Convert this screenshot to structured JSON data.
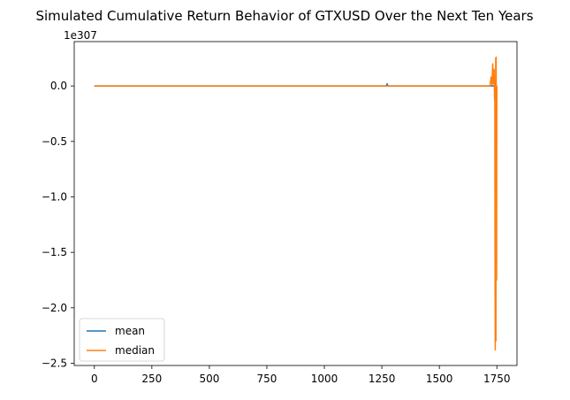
{
  "chart_data": {
    "type": "line",
    "title": "Simulated Cumulative Return Behavior of GTXUSD Over the Next Ten Years",
    "xlabel": "",
    "ylabel": "",
    "y_offset_label": "1e307",
    "xlim": [
      -87.5,
      1837.5
    ],
    "ylim": [
      -2.52,
      0.4
    ],
    "x_ticks": [
      0,
      250,
      500,
      750,
      1000,
      1250,
      1500,
      1750
    ],
    "x_tick_labels": [
      "0",
      "250",
      "500",
      "750",
      "1000",
      "1250",
      "1500",
      "1750"
    ],
    "y_ticks": [
      -2.5,
      -2.0,
      -1.5,
      -1.0,
      -0.5,
      0.0
    ],
    "y_tick_labels": [
      "−2.5",
      "−2.0",
      "−1.5",
      "−1.0",
      "−0.5",
      "0.0"
    ],
    "grid": false,
    "legend_position": "lower-left",
    "series": [
      {
        "name": "mean",
        "color": "#1f77b4",
        "x": [
          0,
          1270,
          1273,
          1276,
          1279,
          1720,
          1750
        ],
        "y": [
          0.0,
          0.0,
          0.02,
          0.0,
          0.0,
          0.0,
          0.0
        ]
      },
      {
        "name": "median",
        "color": "#ff7f0e",
        "x": [
          0,
          1720,
          1725,
          1729,
          1732,
          1735,
          1738,
          1740,
          1741,
          1742,
          1743,
          1744,
          1745,
          1746,
          1747,
          1748,
          1749,
          1750
        ],
        "y": [
          0.0,
          0.0,
          0.08,
          0.01,
          0.2,
          0.02,
          0.15,
          -0.12,
          0.05,
          -1.6,
          -2.38,
          -0.3,
          0.25,
          -2.3,
          0.26,
          -1.4,
          -1.75,
          0.0
        ]
      }
    ]
  }
}
